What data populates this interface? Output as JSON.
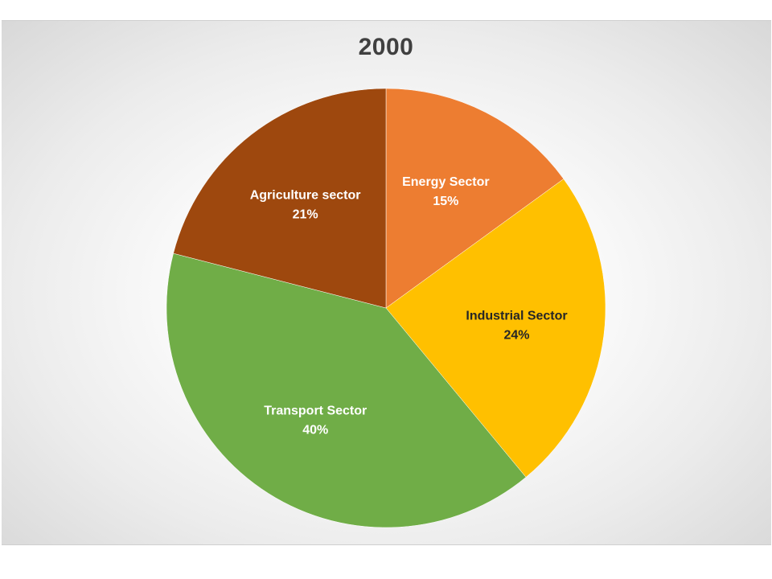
{
  "chart_data": {
    "type": "pie",
    "title": "2000",
    "slices": [
      {
        "label": "Energy Sector",
        "value": 15,
        "percent_label": "15%",
        "color": "#ED7D31",
        "text_color": "#ffffff"
      },
      {
        "label": "Industrial Sector",
        "value": 24,
        "percent_label": "24%",
        "color": "#FFC000",
        "text_color": "#262626"
      },
      {
        "label": "Transport Sector",
        "value": 40,
        "percent_label": "40%",
        "color": "#70AD47",
        "text_color": "#ffffff"
      },
      {
        "label": "Agriculture sector",
        "value": 21,
        "percent_label": "21%",
        "color": "#9E480E",
        "text_color": "#ffffff"
      }
    ],
    "start_angle": "12 o'clock",
    "direction": "clockwise",
    "legend": "none"
  }
}
